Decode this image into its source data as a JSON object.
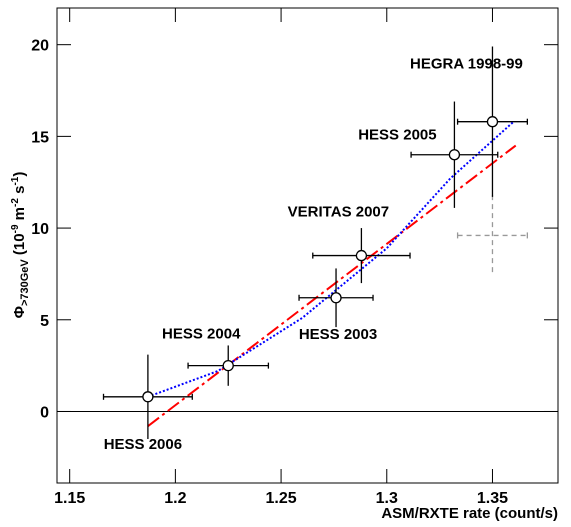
{
  "chart_data": {
    "type": "scatter",
    "xlabel": "ASM/RXTE rate (count/s)",
    "ylabel_parts": [
      {
        "text": "Φ",
        "pos": "base"
      },
      {
        "text": ">730GeV",
        "pos": "sub"
      },
      {
        "text": " (10",
        "pos": "base"
      },
      {
        "text": "-9",
        "pos": "sup"
      },
      {
        "text": " m",
        "pos": "base"
      },
      {
        "text": "-2",
        "pos": "sup"
      },
      {
        "text": " s",
        "pos": "base"
      },
      {
        "text": "-1",
        "pos": "sup"
      },
      {
        "text": ")",
        "pos": "base"
      }
    ],
    "xlim": [
      1.144,
      1.381
    ],
    "ylim": [
      -3.9,
      22
    ],
    "xticks": [
      1.15,
      1.2,
      1.25,
      1.3,
      1.35
    ],
    "yticks": [
      0,
      5,
      10,
      15,
      20
    ],
    "hline": 0,
    "points": [
      {
        "label": "HESS 2006",
        "x": 1.187,
        "y": 0.8,
        "xerr": 0.021,
        "yerr": 2.3
      },
      {
        "label": "HESS 2004",
        "x": 1.225,
        "y": 2.5,
        "xerr": 0.019,
        "yerr": 1.1
      },
      {
        "label": "HESS 2003",
        "x": 1.276,
        "y": 6.2,
        "xerr": 0.0175,
        "yerr": 1.6
      },
      {
        "label": "VERITAS 2007",
        "x": 1.288,
        "y": 8.5,
        "xerr": 0.023,
        "yerr": 1.5
      },
      {
        "label": "HESS 2005",
        "x": 1.332,
        "y": 14.0,
        "xerr": 0.0205,
        "yerr": 2.9
      },
      {
        "label": "HEGRA 1998-99",
        "x": 1.35,
        "y": 15.8,
        "xerr": 0.0165,
        "yerr": 4.1
      }
    ],
    "extra_points": [
      {
        "x": 1.35,
        "y": 9.6,
        "xerr": 0.0165,
        "yerr": 2.2,
        "color": "#999999",
        "style": "dashed"
      }
    ],
    "fits": [
      {
        "color": "#ff0000",
        "style": "dashdot",
        "x": [
          1.187,
          1.361
        ],
        "values": [
          -0.8,
          14.5
        ]
      },
      {
        "color": "#0000ff",
        "style": "dotted",
        "x": [
          1.187,
          1.22,
          1.26,
          1.3,
          1.33,
          1.36
        ],
        "values": [
          0.8,
          2.2,
          5.1,
          8.9,
          12.7,
          15.8
        ]
      }
    ]
  }
}
